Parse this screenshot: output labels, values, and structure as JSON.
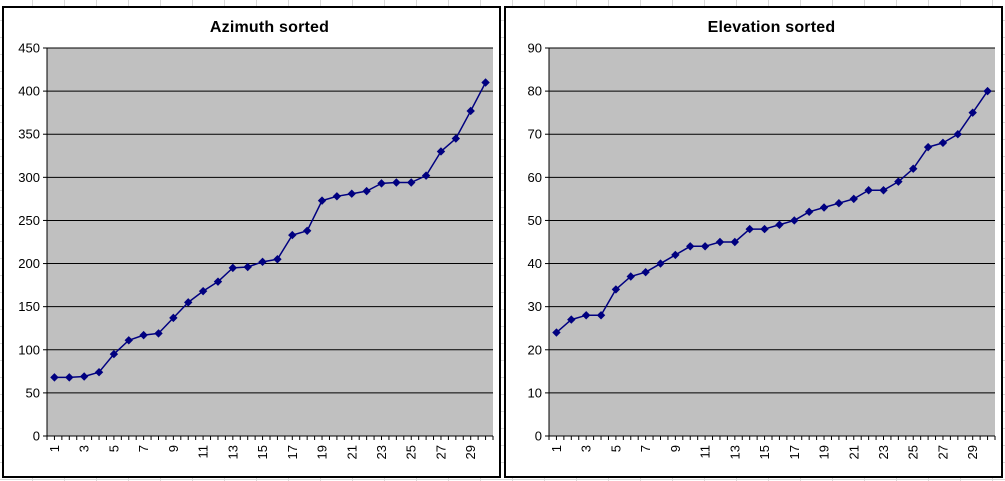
{
  "page": {
    "background": "#ffffff",
    "sheet_gridline_color": "#d9d9d9",
    "panel_border_color": "#000000"
  },
  "chart_data": [
    {
      "type": "line",
      "title": "Azimuth sorted",
      "x": [
        1,
        2,
        3,
        4,
        5,
        6,
        7,
        8,
        9,
        10,
        11,
        12,
        13,
        14,
        15,
        16,
        17,
        18,
        19,
        20,
        21,
        22,
        23,
        24,
        25,
        26,
        27,
        28,
        29,
        30
      ],
      "values": [
        68,
        68,
        69,
        74,
        95,
        111,
        117,
        119,
        137,
        155,
        168,
        179,
        195,
        196,
        202,
        205,
        233,
        238,
        273,
        278,
        281,
        284,
        293,
        294,
        294,
        302,
        330,
        345,
        377,
        410
      ],
      "ylim": [
        0,
        450
      ],
      "ytick_step": 50,
      "ytick_labels": [
        "0",
        "50",
        "100",
        "150",
        "200",
        "250",
        "300",
        "350",
        "400",
        "450"
      ],
      "xtick_labels": [
        "1",
        "3",
        "5",
        "7",
        "9",
        "11",
        "13",
        "15",
        "17",
        "19",
        "21",
        "23",
        "25",
        "27",
        "29"
      ],
      "xlabel": "",
      "ylabel": "",
      "grid": true,
      "legend": "none",
      "plot_bg": "#c0c0c0",
      "gridline_color": "#000000",
      "line_color": "#000080",
      "marker": "diamond",
      "marker_color": "#000080"
    },
    {
      "type": "line",
      "title": "Elevation sorted",
      "x": [
        1,
        2,
        3,
        4,
        5,
        6,
        7,
        8,
        9,
        10,
        11,
        12,
        13,
        14,
        15,
        16,
        17,
        18,
        19,
        20,
        21,
        22,
        23,
        24,
        25,
        26,
        27,
        28,
        29,
        30
      ],
      "values": [
        24,
        27,
        28,
        28,
        34,
        37,
        38,
        40,
        42,
        44,
        44,
        45,
        45,
        48,
        48,
        49,
        50,
        52,
        53,
        54,
        55,
        57,
        57,
        59,
        62,
        67,
        68,
        70,
        75,
        80
      ],
      "ylim": [
        0,
        90
      ],
      "ytick_step": 10,
      "ytick_labels": [
        "0",
        "10",
        "20",
        "30",
        "40",
        "50",
        "60",
        "70",
        "80",
        "90"
      ],
      "xtick_labels": [
        "1",
        "3",
        "5",
        "7",
        "9",
        "11",
        "13",
        "15",
        "17",
        "19",
        "21",
        "23",
        "25",
        "27",
        "29"
      ],
      "xlabel": "",
      "ylabel": "",
      "grid": true,
      "legend": "none",
      "plot_bg": "#c0c0c0",
      "gridline_color": "#000000",
      "line_color": "#000080",
      "marker": "diamond",
      "marker_color": "#000080"
    }
  ]
}
